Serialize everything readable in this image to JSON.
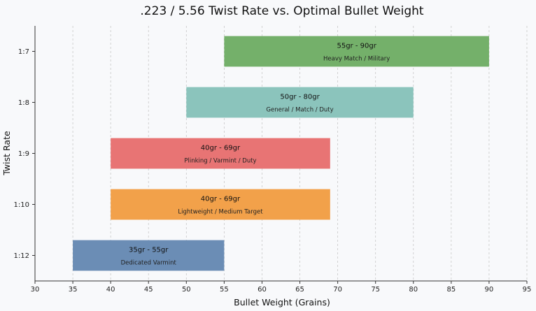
{
  "chart_data": {
    "type": "bar",
    "orientation": "horizontal",
    "title": ".223 / 5.56 Twist Rate vs. Optimal Bullet Weight",
    "xlabel": "Bullet Weight (Grains)",
    "ylabel": "Twist Rate",
    "xlim": [
      30,
      95
    ],
    "xticks": [
      30,
      35,
      40,
      45,
      50,
      55,
      60,
      65,
      70,
      75,
      80,
      85,
      90,
      95
    ],
    "grid": "vertical dashed",
    "categories": [
      "1:7",
      "1:8",
      "1:9",
      "1:10",
      "1:12"
    ],
    "bars": [
      {
        "twist": "1:7",
        "start": 55,
        "end": 90,
        "range_label": "55gr - 90gr",
        "use_label": "Heavy Match / Military",
        "color": "#74b06a"
      },
      {
        "twist": "1:8",
        "start": 50,
        "end": 80,
        "range_label": "50gr - 80gr",
        "use_label": "General / Match / Duty",
        "color": "#8bc4bc"
      },
      {
        "twist": "1:9",
        "start": 40,
        "end": 69,
        "range_label": "40gr - 69gr",
        "use_label": "Plinking / Varmint / Duty",
        "color": "#e87474"
      },
      {
        "twist": "1:10",
        "start": 40,
        "end": 69,
        "range_label": "40gr - 69gr",
        "use_label": "Lightweight / Medium Target",
        "color": "#f2a14a"
      },
      {
        "twist": "1:12",
        "start": 35,
        "end": 55,
        "range_label": "35gr - 55gr",
        "use_label": "Dedicated Varmint",
        "color": "#6b8db5"
      }
    ]
  }
}
